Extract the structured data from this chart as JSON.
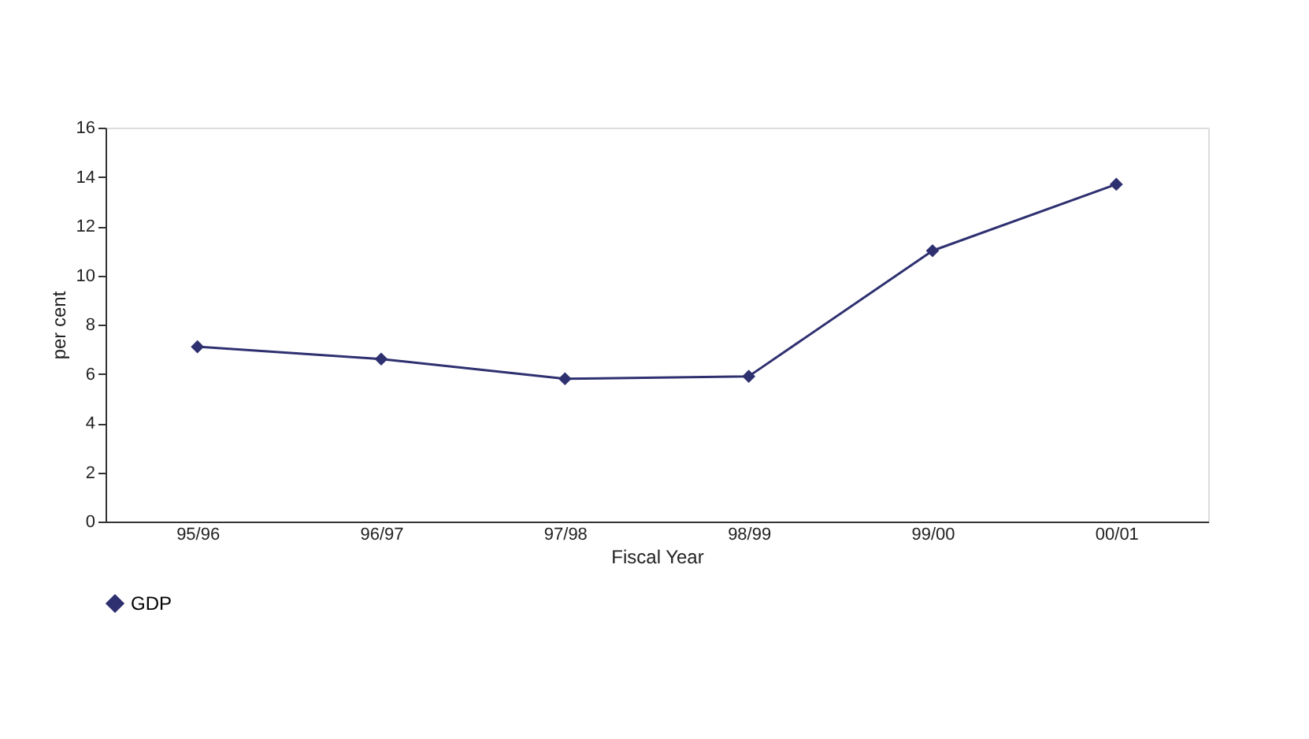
{
  "chart_data": {
    "type": "line",
    "xlabel": "Fiscal Year",
    "ylabel": "per cent",
    "categories": [
      "95/96",
      "96/97",
      "97/98",
      "98/99",
      "99/00",
      "00/01"
    ],
    "series": [
      {
        "name": "GDP",
        "color": "#2e3070",
        "values": [
          7.1,
          6.6,
          5.8,
          5.9,
          11.0,
          13.7
        ]
      }
    ],
    "ylim": [
      0,
      16
    ],
    "yticks": [
      0,
      2,
      4,
      6,
      8,
      10,
      12,
      14,
      16
    ],
    "grid": false,
    "legend": "bottom",
    "marker": "diamond",
    "line_style": "solid"
  }
}
